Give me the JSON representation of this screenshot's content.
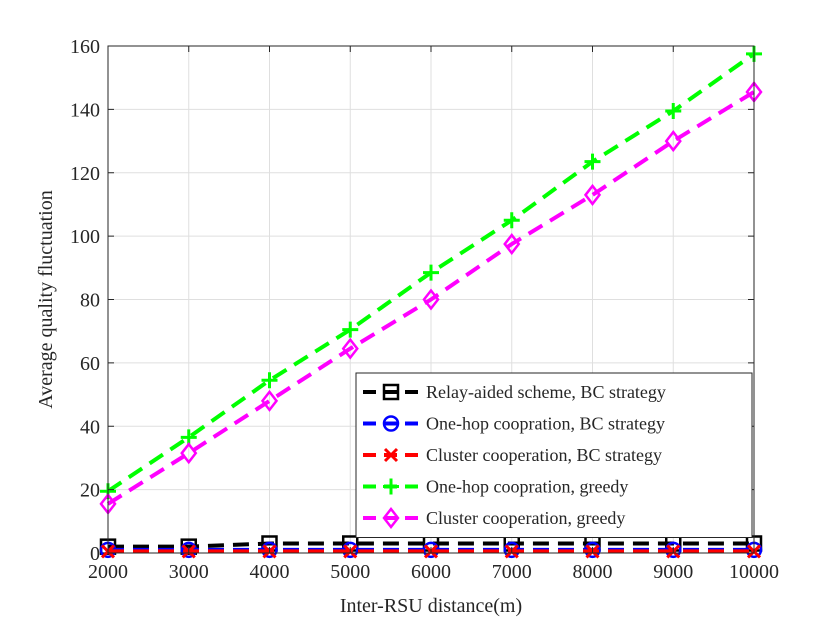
{
  "chart_data": {
    "type": "line",
    "title": "",
    "xlabel": "Inter-RSU distance(m)",
    "ylabel": "Average quality fluctuation",
    "xlim": [
      2000,
      10000
    ],
    "ylim": [
      0,
      160
    ],
    "xticks": [
      2000,
      3000,
      4000,
      5000,
      6000,
      7000,
      8000,
      9000,
      10000
    ],
    "yticks": [
      0,
      20,
      40,
      60,
      80,
      100,
      120,
      140,
      160
    ],
    "grid": true,
    "legend_position": "lower-right",
    "x": [
      2000,
      3000,
      4000,
      5000,
      6000,
      7000,
      8000,
      9000,
      10000
    ],
    "series": [
      {
        "name": "Relay-aided scheme, BC strategy",
        "values": [
          2,
          2,
          3,
          3,
          3,
          3,
          3,
          3,
          3
        ],
        "color": "#000000",
        "marker": "square"
      },
      {
        "name": "One-hop coopration, BC strategy",
        "values": [
          1,
          1,
          1,
          1,
          1,
          1,
          1,
          1,
          1
        ],
        "color": "#0000ff",
        "marker": "circle"
      },
      {
        "name": "Cluster cooperation, BC strategy",
        "values": [
          0.5,
          0.5,
          0.5,
          0.5,
          0.5,
          0.5,
          0.5,
          0.5,
          0.5
        ],
        "color": "#ff0000",
        "marker": "x"
      },
      {
        "name": "One-hop coopration, greedy",
        "values": [
          19.5,
          36.5,
          54.5,
          70.5,
          88.5,
          105,
          123.5,
          139.5,
          157.5
        ],
        "color": "#00ff00",
        "marker": "plus"
      },
      {
        "name": "Cluster cooperation, greedy",
        "values": [
          15.5,
          31.5,
          48,
          64.5,
          80,
          97.5,
          113,
          130,
          145.5
        ],
        "color": "#ff00ff",
        "marker": "diamond"
      }
    ]
  }
}
